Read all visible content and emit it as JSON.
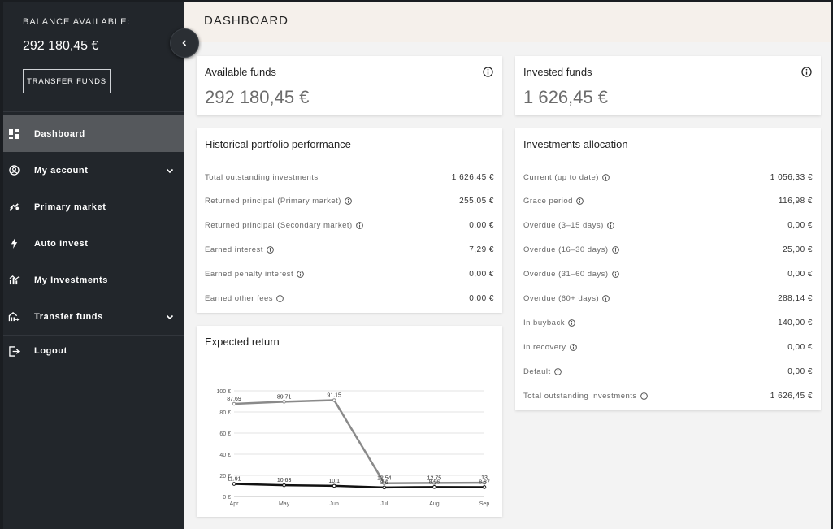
{
  "sidebar": {
    "balance_label": "BALANCE AVAILABLE:",
    "balance_value": "292 180,45 €",
    "transfer_button": "TRANSFER FUNDS",
    "items": [
      {
        "label": "Dashboard",
        "icon": "dashboard-icon",
        "active": true
      },
      {
        "label": "My account",
        "icon": "account-icon",
        "chevron": true
      },
      {
        "label": "Primary market",
        "icon": "market-icon"
      },
      {
        "label": "Auto Invest",
        "icon": "lightning-icon"
      },
      {
        "label": "My Investments",
        "icon": "investments-icon"
      },
      {
        "label": "Transfer funds",
        "icon": "transfer-icon",
        "chevron": true
      },
      {
        "label": "Logout",
        "icon": "logout-icon"
      }
    ]
  },
  "header": {
    "title": "DASHBOARD"
  },
  "available_funds": {
    "title": "Available funds",
    "value": "292 180,45 €"
  },
  "invested_funds": {
    "title": "Invested funds",
    "value": "1 626,45 €"
  },
  "historical": {
    "title": "Historical portfolio performance",
    "rows": [
      {
        "label": "Total outstanding investments",
        "value": "1 626,45 €",
        "info": false
      },
      {
        "label": "Returned principal (Primary market)",
        "value": "255,05 €",
        "info": true
      },
      {
        "label": "Returned principal (Secondary market)",
        "value": "0,00 €",
        "info": true
      },
      {
        "label": "Earned interest",
        "value": "7,29 €",
        "info": true
      },
      {
        "label": "Earned penalty interest",
        "value": "0,00 €",
        "info": true
      },
      {
        "label": "Earned other fees",
        "value": "0,00 €",
        "info": true
      }
    ]
  },
  "allocation": {
    "title": "Investments allocation",
    "rows": [
      {
        "label": "Current (up to date)",
        "value": "1 056,33 €",
        "info": true
      },
      {
        "label": "Grace period",
        "value": "116,98 €",
        "info": true
      },
      {
        "label": "Overdue (3–15 days)",
        "value": "0,00 €",
        "info": true
      },
      {
        "label": "Overdue (16–30 days)",
        "value": "25,00 €",
        "info": true
      },
      {
        "label": "Overdue (31–60 days)",
        "value": "0,00 €",
        "info": true
      },
      {
        "label": "Overdue (60+ days)",
        "value": "288,14 €",
        "info": true
      },
      {
        "label": "In buyback",
        "value": "140,00 €",
        "info": true
      },
      {
        "label": "In recovery",
        "value": "0,00 €",
        "info": true
      },
      {
        "label": "Default",
        "value": "0,00 €",
        "info": true
      },
      {
        "label": "Total outstanding investments",
        "value": "1 626,45 €",
        "info": true
      }
    ]
  },
  "expected_return": {
    "title": "Expected return"
  },
  "chart_data": {
    "type": "line",
    "title": "Expected return",
    "categories": [
      "Apr",
      "May",
      "Jun",
      "Jul",
      "Aug",
      "Sep"
    ],
    "ylim": [
      0,
      100
    ],
    "yticks": [
      0,
      20,
      40,
      60,
      80,
      100
    ],
    "ytick_labels": [
      "0 €",
      "20 €",
      "40 €",
      "60 €",
      "80 €",
      "100 €"
    ],
    "grid": true,
    "series": [
      {
        "color": "#8a8a8a",
        "values": [
          87.69,
          89.71,
          91.15,
          12.54,
          12.75,
          13
        ],
        "labels": [
          "87.69",
          "89.71",
          "91.15",
          "12.54",
          "12.75",
          "13"
        ]
      },
      {
        "color": "#111111",
        "values": [
          11.91,
          10.63,
          10.1,
          8.6,
          8.96,
          8.87
        ],
        "labels": [
          "11.91",
          "10.63",
          "10.1",
          "8.6",
          "8.96",
          "8.87"
        ]
      }
    ]
  }
}
